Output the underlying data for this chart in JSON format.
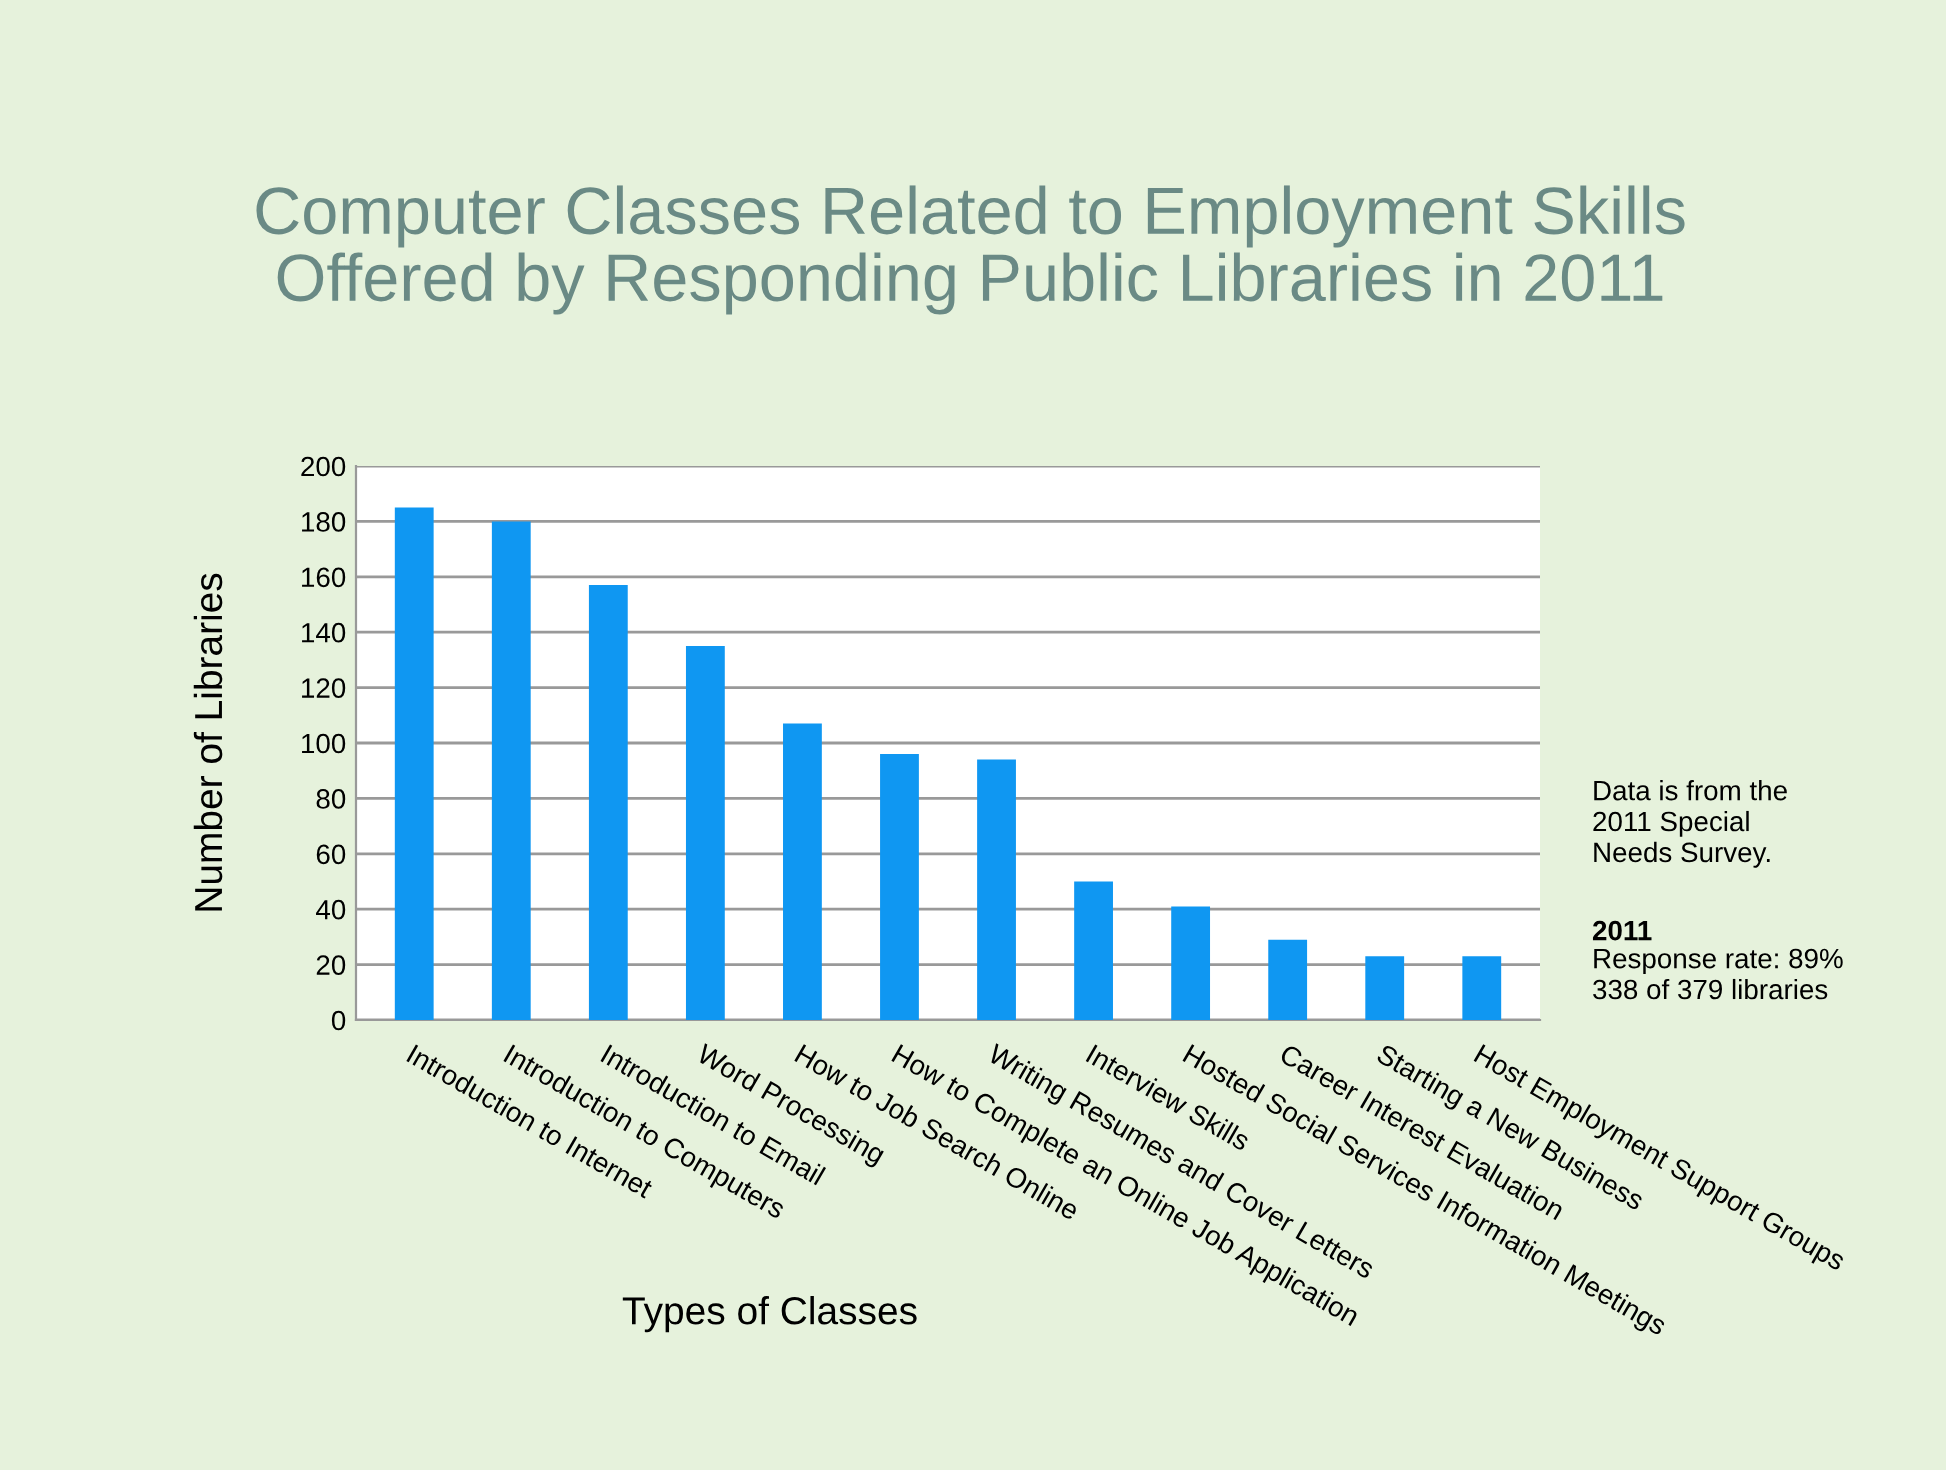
{
  "chart_data": {
    "type": "bar",
    "title": "Computer Classes Related to Employment Skills\nOffered by Responding Public Libraries in 2011",
    "xlabel": "Types of Classes",
    "ylabel": "Number of Libraries",
    "categories": [
      "Introduction to Internet",
      "Introduction to Computers",
      "Introduction to Email",
      "Word Processing",
      "How to Job Search Online",
      "How to Complete an Online Job Application",
      "Writing Resumes and Cover Letters",
      "Interview Skills",
      "Hosted Social Services Information Meetings",
      "Career Interest Evaluation",
      "Starting a New Business",
      "Host Employment Support Groups"
    ],
    "values": [
      185,
      180,
      157,
      135,
      107,
      96,
      94,
      50,
      41,
      29,
      23,
      23
    ],
    "color": "#0f97f2",
    "ylim": [
      0,
      200
    ],
    "yticks": [
      0,
      20,
      40,
      60,
      80,
      100,
      120,
      140,
      160,
      180,
      200
    ],
    "grid": "y",
    "legend": false,
    "annotations": [
      "Data is from the\n2011 Special\nNeeds Survey.",
      "2011",
      "Response rate: 89%\n338 of 379 libraries"
    ]
  }
}
